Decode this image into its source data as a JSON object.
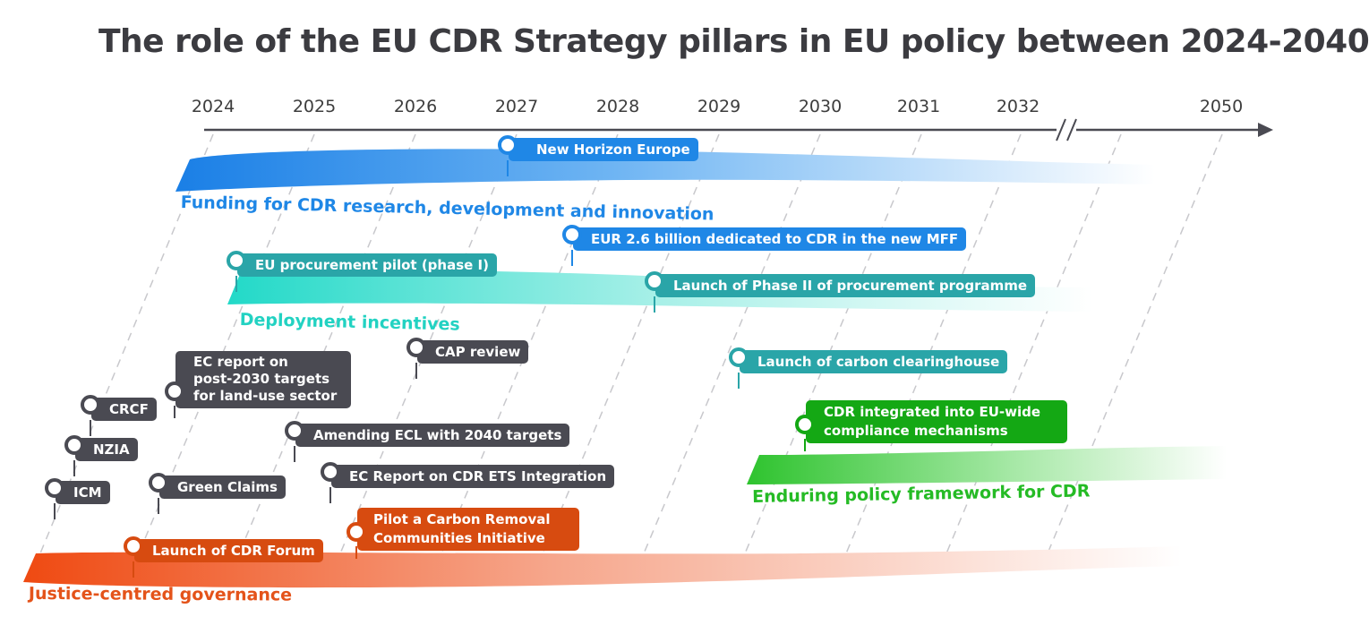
{
  "title": "The role of the EU CDR Strategy pillars in EU policy between 2024-2040",
  "timeline": {
    "years": [
      "2024",
      "2025",
      "2026",
      "2027",
      "2028",
      "2029",
      "2030",
      "2031",
      "2032",
      "2050"
    ],
    "axis_break": true
  },
  "colors": {
    "funding": "#1f87e6",
    "deployment": "#2aa5a8",
    "deployment_band": "#2fe0cf",
    "policy": "#4a4a52",
    "enduring": "#14a814",
    "justice": "#d74b10"
  },
  "pillars": {
    "funding": "Funding for CDR research, development and innovation",
    "deployment": "Deployment incentives",
    "enduring": "Enduring policy framework for CDR",
    "justice": "Justice-centred governance"
  },
  "milestones": {
    "new_horizon": "New Horizon Europe",
    "eur_mff": "EUR 2.6 billion dedicated to CDR in the new MFF",
    "procurement_pilot": "EU procurement pilot (phase I)",
    "phase_two": "Launch of Phase II of procurement programme",
    "cap_review": "CAP review",
    "ec_report_lines": [
      "EC report on",
      "post-2030 targets",
      "for  land-use sector"
    ],
    "crcf": "CRCF",
    "nzia": "NZIA",
    "icm": "ICM",
    "green_claims": "Green Claims",
    "amending_ecl": "Amending ECL with 2040 targets",
    "ets_report": "EC Report on CDR ETS Integration",
    "clearinghouse": "Launch of carbon clearinghouse",
    "compliance_lines": [
      "CDR integrated into EU-wide",
      "compliance mechanisms"
    ],
    "cdr_forum": "Launch of CDR Forum",
    "communities_lines": [
      "Pilot a Carbon Removal",
      "Communities Initiative"
    ]
  }
}
